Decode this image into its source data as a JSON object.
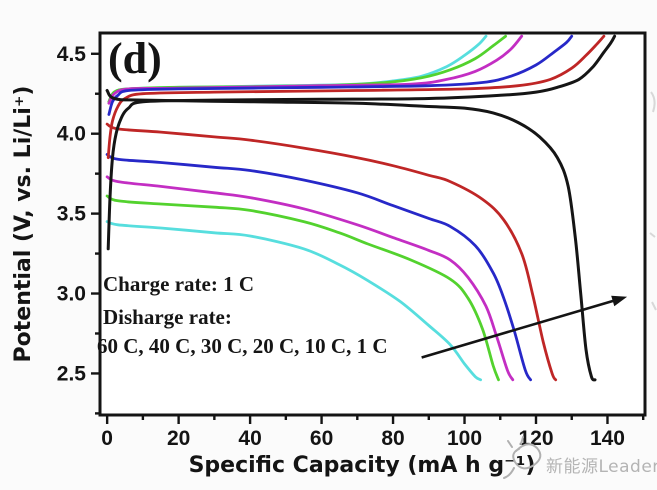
{
  "figure": {
    "panel_label": "(d)"
  },
  "annotations": {
    "charge_rate": "Charge rate: 1 C",
    "discharge_rate_label": "Disharge rate:",
    "discharge_rates": "60 C, 40 C, 30 C, 20 C, 10 C, 1 C"
  },
  "watermark": {
    "text": "新能源Leader",
    "color": "#b4b4b4",
    "logo": "doodle-scribble-icon"
  },
  "chart_data": {
    "type": "line",
    "title": "",
    "xlabel": "Specific Capacity (mA h g⁻¹)",
    "ylabel": "Potential (V, vs. Li/Li⁺)",
    "xlim": [
      -2,
      150.5
    ],
    "ylim": [
      2.24,
      4.63
    ],
    "grid": false,
    "legend_position": "none",
    "x_major_ticks": [
      0,
      20,
      40,
      60,
      80,
      100,
      120,
      140
    ],
    "x_tick_labels": [
      "0",
      "20",
      "40",
      "60",
      "80",
      "100",
      "120",
      "140"
    ],
    "x_minor_ticks": [
      10,
      30,
      50,
      70,
      90,
      110,
      130,
      150
    ],
    "y_major_ticks": [
      2.5,
      3.0,
      3.5,
      4.0,
      4.5
    ],
    "y_tick_labels": [
      "2.5",
      "3.0",
      "3.5",
      "4.0",
      "4.5"
    ],
    "y_minor_ticks": [
      2.25,
      2.75,
      3.25,
      3.75,
      4.25
    ],
    "charge_rate": "1 C",
    "series": [
      {
        "name": "60 C",
        "color": "#57dede",
        "discharge": [
          [
            0,
            3.45
          ],
          [
            3,
            3.43
          ],
          [
            15,
            3.41
          ],
          [
            30,
            3.38
          ],
          [
            40,
            3.36
          ],
          [
            55,
            3.28
          ],
          [
            65,
            3.18
          ],
          [
            73,
            3.08
          ],
          [
            82,
            2.95
          ],
          [
            90,
            2.8
          ],
          [
            96,
            2.68
          ],
          [
            100,
            2.56
          ],
          [
            103,
            2.48
          ],
          [
            104.5,
            2.46
          ]
        ],
        "charge": [
          [
            0.5,
            4.2
          ],
          [
            2,
            4.26
          ],
          [
            6,
            4.28
          ],
          [
            20,
            4.29
          ],
          [
            50,
            4.3
          ],
          [
            70,
            4.31
          ],
          [
            80,
            4.33
          ],
          [
            88,
            4.36
          ],
          [
            95,
            4.42
          ],
          [
            100,
            4.49
          ],
          [
            104,
            4.56
          ],
          [
            106,
            4.61
          ]
        ]
      },
      {
        "name": "40 C",
        "color": "#53d22e",
        "discharge": [
          [
            0,
            3.61
          ],
          [
            3,
            3.58
          ],
          [
            15,
            3.56
          ],
          [
            30,
            3.54
          ],
          [
            40,
            3.52
          ],
          [
            55,
            3.45
          ],
          [
            65,
            3.38
          ],
          [
            73,
            3.31
          ],
          [
            85,
            3.21
          ],
          [
            96,
            3.09
          ],
          [
            101,
            2.97
          ],
          [
            105,
            2.78
          ],
          [
            108,
            2.55
          ],
          [
            109.5,
            2.46
          ]
        ],
        "charge": [
          [
            0.5,
            4.2
          ],
          [
            2,
            4.26
          ],
          [
            6,
            4.28
          ],
          [
            20,
            4.29
          ],
          [
            60,
            4.3
          ],
          [
            78,
            4.32
          ],
          [
            88,
            4.35
          ],
          [
            96,
            4.4
          ],
          [
            103,
            4.47
          ],
          [
            108,
            4.55
          ],
          [
            111.5,
            4.61
          ]
        ]
      },
      {
        "name": "30 C",
        "color": "#c32ec3",
        "discharge": [
          [
            0,
            3.73
          ],
          [
            3,
            3.7
          ],
          [
            15,
            3.67
          ],
          [
            30,
            3.63
          ],
          [
            40,
            3.6
          ],
          [
            55,
            3.53
          ],
          [
            70,
            3.43
          ],
          [
            80,
            3.35
          ],
          [
            90,
            3.27
          ],
          [
            96,
            3.21
          ],
          [
            101,
            3.1
          ],
          [
            106,
            2.92
          ],
          [
            109,
            2.73
          ],
          [
            112,
            2.52
          ],
          [
            113.5,
            2.46
          ]
        ],
        "charge": [
          [
            0.5,
            4.19
          ],
          [
            2,
            4.25
          ],
          [
            6,
            4.28
          ],
          [
            20,
            4.285
          ],
          [
            60,
            4.3
          ],
          [
            85,
            4.31
          ],
          [
            95,
            4.34
          ],
          [
            103,
            4.39
          ],
          [
            109,
            4.46
          ],
          [
            113,
            4.53
          ],
          [
            116,
            4.61
          ]
        ]
      },
      {
        "name": "20 C",
        "color": "#2728c8",
        "discharge": [
          [
            0,
            3.87
          ],
          [
            3,
            3.84
          ],
          [
            15,
            3.82
          ],
          [
            30,
            3.79
          ],
          [
            40,
            3.77
          ],
          [
            55,
            3.71
          ],
          [
            70,
            3.63
          ],
          [
            80,
            3.55
          ],
          [
            90,
            3.47
          ],
          [
            96,
            3.42
          ],
          [
            103,
            3.3
          ],
          [
            108,
            3.13
          ],
          [
            111,
            2.97
          ],
          [
            114,
            2.76
          ],
          [
            117,
            2.52
          ],
          [
            118.5,
            2.46
          ]
        ],
        "charge": [
          [
            0.5,
            4.12
          ],
          [
            1.5,
            4.2
          ],
          [
            3,
            4.24
          ],
          [
            6,
            4.27
          ],
          [
            20,
            4.28
          ],
          [
            60,
            4.29
          ],
          [
            90,
            4.3
          ],
          [
            105,
            4.32
          ],
          [
            113,
            4.36
          ],
          [
            120,
            4.43
          ],
          [
            125,
            4.51
          ],
          [
            128.5,
            4.57
          ],
          [
            130,
            4.61
          ]
        ]
      },
      {
        "name": "10 C",
        "color": "#bf2626",
        "discharge": [
          [
            0,
            4.06
          ],
          [
            3,
            4.03
          ],
          [
            15,
            4.01
          ],
          [
            30,
            3.98
          ],
          [
            40,
            3.96
          ],
          [
            55,
            3.91
          ],
          [
            70,
            3.85
          ],
          [
            80,
            3.8
          ],
          [
            90,
            3.74
          ],
          [
            96,
            3.7
          ],
          [
            105,
            3.59
          ],
          [
            111,
            3.46
          ],
          [
            116,
            3.25
          ],
          [
            119,
            3.0
          ],
          [
            122,
            2.7
          ],
          [
            124.5,
            2.5
          ],
          [
            125.5,
            2.46
          ]
        ],
        "charge": [
          [
            0.3,
            3.85
          ],
          [
            0.8,
            3.98
          ],
          [
            1.5,
            4.08
          ],
          [
            3,
            4.17
          ],
          [
            5,
            4.22
          ],
          [
            10,
            4.25
          ],
          [
            30,
            4.26
          ],
          [
            70,
            4.27
          ],
          [
            100,
            4.28
          ],
          [
            115,
            4.3
          ],
          [
            124,
            4.34
          ],
          [
            130,
            4.41
          ],
          [
            134,
            4.49
          ],
          [
            137,
            4.56
          ],
          [
            139,
            4.61
          ]
        ]
      },
      {
        "name": "1 C",
        "color": "#151515",
        "discharge": [
          [
            0,
            4.27
          ],
          [
            2,
            4.22
          ],
          [
            10,
            4.21
          ],
          [
            40,
            4.2
          ],
          [
            70,
            4.19
          ],
          [
            90,
            4.17
          ],
          [
            100,
            4.16
          ],
          [
            108,
            4.13
          ],
          [
            115,
            4.07
          ],
          [
            121,
            3.98
          ],
          [
            126,
            3.85
          ],
          [
            129,
            3.67
          ],
          [
            131,
            3.35
          ],
          [
            132.5,
            3.0
          ],
          [
            134,
            2.65
          ],
          [
            135.5,
            2.48
          ],
          [
            136.5,
            2.46
          ]
        ],
        "charge": [
          [
            0.3,
            3.28
          ],
          [
            0.8,
            3.6
          ],
          [
            1.5,
            3.85
          ],
          [
            2.5,
            4.0
          ],
          [
            4,
            4.1
          ],
          [
            6,
            4.16
          ],
          [
            10,
            4.2
          ],
          [
            30,
            4.21
          ],
          [
            60,
            4.215
          ],
          [
            90,
            4.22
          ],
          [
            110,
            4.24
          ],
          [
            120,
            4.26
          ],
          [
            126,
            4.29
          ],
          [
            132,
            4.34
          ],
          [
            136,
            4.42
          ],
          [
            139,
            4.51
          ],
          [
            141,
            4.57
          ],
          [
            142,
            4.61
          ]
        ]
      }
    ],
    "arrow": {
      "from": [
        88,
        2.6
      ],
      "to": [
        145.5,
        2.98
      ]
    }
  }
}
